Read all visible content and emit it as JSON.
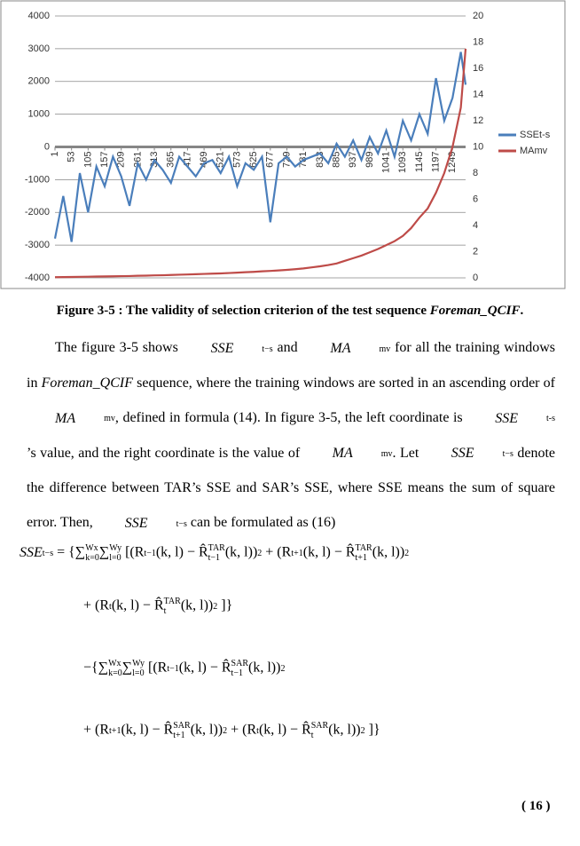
{
  "chart_data": {
    "type": "line",
    "x": [
      1,
      27,
      53,
      79,
      105,
      131,
      157,
      183,
      209,
      235,
      261,
      287,
      313,
      339,
      365,
      391,
      417,
      443,
      469,
      495,
      521,
      547,
      573,
      599,
      625,
      651,
      677,
      703,
      729,
      755,
      781,
      807,
      833,
      859,
      885,
      911,
      937,
      963,
      989,
      1015,
      1041,
      1067,
      1093,
      1119,
      1145,
      1171,
      1197,
      1223,
      1249,
      1275,
      1290
    ],
    "xlim": [
      1,
      1290
    ],
    "xticks": [
      1,
      53,
      105,
      157,
      209,
      261,
      313,
      365,
      417,
      469,
      521,
      573,
      625,
      677,
      729,
      781,
      833,
      885,
      937,
      989,
      1041,
      1093,
      1145,
      1197,
      1249
    ],
    "ylim": [
      -4000,
      4000
    ],
    "yticks": [
      -4000,
      -3000,
      -2000,
      -1000,
      0,
      1000,
      2000,
      3000,
      4000
    ],
    "y2lim": [
      0,
      20
    ],
    "y2ticks": [
      0,
      2,
      4,
      6,
      8,
      10,
      12,
      14,
      16,
      18,
      20
    ],
    "grid": true,
    "legend": "right",
    "series": [
      {
        "name": "SSEt-s",
        "color": "#4a7ebb",
        "values": [
          -2800,
          -1500,
          -2900,
          -800,
          -2000,
          -600,
          -1200,
          -300,
          -900,
          -1800,
          -500,
          -1000,
          -400,
          -700,
          -1100,
          -300,
          -600,
          -900,
          -500,
          -400,
          -800,
          -300,
          -1200,
          -500,
          -700,
          -300,
          -2300,
          -500,
          -300,
          -600,
          -400,
          -300,
          -200,
          -500,
          100,
          -300,
          200,
          -400,
          300,
          -200,
          500,
          -300,
          800,
          200,
          1000,
          400,
          2100,
          800,
          1500,
          2900,
          1900
        ]
      },
      {
        "name": "MAmv",
        "color": "#be4b48",
        "axis": "y2",
        "values": [
          0.05,
          0.06,
          0.07,
          0.08,
          0.09,
          0.1,
          0.11,
          0.12,
          0.13,
          0.14,
          0.16,
          0.17,
          0.19,
          0.2,
          0.22,
          0.24,
          0.26,
          0.28,
          0.3,
          0.32,
          0.34,
          0.37,
          0.4,
          0.43,
          0.46,
          0.5,
          0.53,
          0.57,
          0.61,
          0.66,
          0.72,
          0.8,
          0.88,
          0.98,
          1.1,
          1.3,
          1.5,
          1.7,
          1.95,
          2.2,
          2.5,
          2.8,
          3.2,
          3.8,
          4.6,
          5.3,
          6.5,
          8,
          10,
          13,
          17.5
        ]
      }
    ]
  },
  "caption": [
    "Figure 3-5 : The validity of selection criterion of the test sequence ",
    "Foreman_QCIF",
    "."
  ],
  "paragraph": [
    "The figure 3-5 shows ",
    {
      "base": "SSE",
      "sub": "t−s"
    },
    " and ",
    {
      "base": "MA",
      "sub": "mv"
    },
    " for all the training windows in ",
    "Foreman_QCIF",
    " sequence, where the training windows are sorted in an ascending order of ",
    {
      "base": "MA",
      "sub": "mv"
    },
    ", defined in formula (14). In figure 3-5, the left coordinate is ",
    {
      "base": "SSE",
      "sub": "t-s"
    },
    "’s value, and the right coordinate is the value of ",
    {
      "base": "MA",
      "sub": "mv"
    },
    ". Let ",
    {
      "base": "SSE",
      "sub": "t−s"
    },
    " denote the difference between TAR’s SSE and SAR’s SSE, where SSE means the sum of square error. Then, ",
    {
      "base": "SSE",
      "sub": "t−s"
    },
    " can be formulated as (16)"
  ],
  "equation": {
    "lines": [
      [
        {
          "base": "SSE",
          "sub": "t−s"
        },
        " = {∑",
        {
          "sub": "k=0",
          "sup": "Wx"
        },
        "∑",
        {
          "sub": "l=0",
          "sup": "Wy"
        },
        " [(R",
        {
          "sub": "t−1"
        },
        "(k, l) − R̂",
        {
          "sub": "t−1",
          "sup": "TAR"
        },
        "(k, l))",
        {
          "sup": "2"
        },
        " + (R",
        {
          "sub": "t+1"
        },
        "(k, l) − R̂",
        {
          "sub": "t+1",
          "sup": "TAR"
        },
        "(k, l))",
        {
          "sup": "2"
        }
      ],
      [
        "+ (R",
        {
          "sub": "t"
        },
        "(k, l) − R̂",
        {
          "sub": "t",
          "sup": "TAR"
        },
        "(k, l))",
        {
          "sup": "2"
        },
        " ]}"
      ],
      [
        "−{∑",
        {
          "sub": "k=0",
          "sup": "Wx"
        },
        "∑",
        {
          "sub": "l=0",
          "sup": "Wy"
        },
        " [(R",
        {
          "sub": "t−1"
        },
        "(k, l) − R̂",
        {
          "sub": "t−1",
          "sup": "SAR"
        },
        "(k, l))",
        {
          "sup": "2"
        }
      ],
      [
        "+ (R",
        {
          "sub": "t+1"
        },
        "(k, l) − R̂",
        {
          "sub": "t+1",
          "sup": "SAR"
        },
        "(k, l))",
        {
          "sup": "2"
        },
        " + (R",
        {
          "sub": "t"
        },
        "(k, l) − R̂",
        {
          "sub": "t",
          "sup": "SAR"
        },
        "(k, l))",
        {
          "sup": "2"
        },
        " ]}"
      ]
    ],
    "number": "( 16 )"
  }
}
